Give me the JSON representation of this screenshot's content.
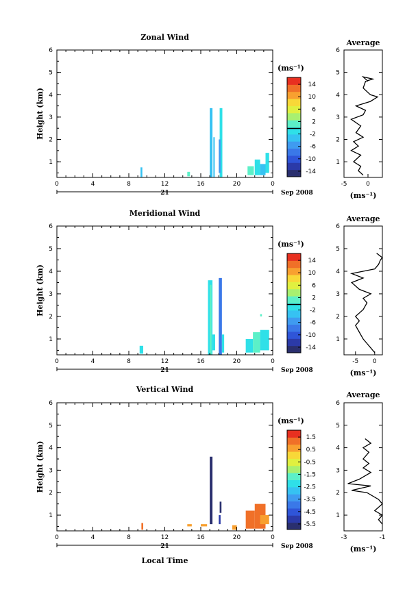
{
  "figure": {
    "xlabel": "Local Time",
    "date_label": "Sep 2008",
    "day_label": "21",
    "unit_label": "(ms⁻¹)"
  },
  "colormap": [
    "#2a2f6e",
    "#2b3aa8",
    "#2f55d8",
    "#3a78e8",
    "#3f9bf0",
    "#36c2f2",
    "#2fe0e8",
    "#5cf0c8",
    "#a8f070",
    "#e0f040",
    "#f8d838",
    "#f8a030",
    "#f07028",
    "#e83020"
  ],
  "chart_data": [
    {
      "type": "heatmap",
      "title": "Zonal Wind",
      "xlabel": "",
      "ylabel": "Height (km)",
      "xlim": [
        0,
        24
      ],
      "ylim": [
        0.3,
        6
      ],
      "xticks": [
        "0",
        "4",
        "8",
        "12",
        "16",
        "20",
        "0"
      ],
      "yticks": [
        "1",
        "2",
        "3",
        "4",
        "5",
        "6"
      ],
      "colorbar": {
        "label": "(ms⁻¹)",
        "range": [
          -16,
          16
        ],
        "ticks": [
          "14",
          "10",
          "6",
          "2",
          "-2",
          "-6",
          "-10",
          "-14"
        ],
        "zero_line": 0
      },
      "cells": [
        {
          "t": 9.3,
          "t2": 9.5,
          "h0": 0.3,
          "h1": 0.75,
          "v": -3
        },
        {
          "t": 14.5,
          "t2": 14.8,
          "h0": 0.35,
          "h1": 0.55,
          "v": 0
        },
        {
          "t": 17.0,
          "t2": 17.3,
          "h0": 0.3,
          "h1": 3.4,
          "v": -3
        },
        {
          "t": 17.4,
          "t2": 17.55,
          "h0": 0.3,
          "h1": 2.1,
          "v": -4
        },
        {
          "t": 18.1,
          "t2": 18.4,
          "h0": 0.3,
          "h1": 3.4,
          "v": -2
        },
        {
          "t": 18.0,
          "t2": 18.2,
          "h0": 0.5,
          "h1": 2.0,
          "v": -5
        },
        {
          "t": 21.2,
          "t2": 21.9,
          "h0": 0.4,
          "h1": 0.8,
          "v": 0
        },
        {
          "t": 22.0,
          "t2": 22.6,
          "h0": 0.4,
          "h1": 1.1,
          "v": -2
        },
        {
          "t": 22.6,
          "t2": 23.2,
          "h0": 0.4,
          "h1": 0.9,
          "v": -3
        },
        {
          "t": 23.2,
          "t2": 23.6,
          "h0": 0.5,
          "h1": 1.4,
          "v": -1
        }
      ],
      "profile": {
        "title": "Average",
        "xlabel": "(ms⁻¹)",
        "xlim": [
          -5,
          3
        ],
        "xticks": [
          "-5",
          "0"
        ],
        "xtick_values": [
          -5,
          0
        ],
        "yticks": [
          "1",
          "2",
          "3",
          "4",
          "5",
          "6"
        ],
        "points": [
          [
            -1,
            0.4
          ],
          [
            -2,
            0.6
          ],
          [
            -1.5,
            0.8
          ],
          [
            -3,
            1.0
          ],
          [
            -1.5,
            1.3
          ],
          [
            -3.5,
            1.5
          ],
          [
            -2,
            1.7
          ],
          [
            -3,
            1.9
          ],
          [
            -1,
            2.1
          ],
          [
            -2.5,
            2.3
          ],
          [
            -1.5,
            2.6
          ],
          [
            -3.5,
            2.9
          ],
          [
            -1,
            3.1
          ],
          [
            -0.5,
            3.3
          ],
          [
            -2.5,
            3.5
          ],
          [
            0.5,
            3.7
          ],
          [
            2,
            3.9
          ],
          [
            0.5,
            4.0
          ],
          [
            -1,
            4.3
          ],
          [
            -0.5,
            4.6
          ],
          [
            1,
            4.7
          ],
          [
            -1,
            4.8
          ],
          [
            0,
            4.6
          ]
        ]
      }
    },
    {
      "type": "heatmap",
      "title": "Meridional Wind",
      "xlabel": "",
      "ylabel": "Height (km)",
      "xlim": [
        0,
        24
      ],
      "ylim": [
        0.3,
        6
      ],
      "xticks": [
        "0",
        "4",
        "8",
        "12",
        "16",
        "20",
        "0"
      ],
      "yticks": [
        "1",
        "2",
        "3",
        "4",
        "5",
        "6"
      ],
      "colorbar": {
        "label": "(ms⁻¹)",
        "range": [
          -16,
          16
        ],
        "ticks": [
          "14",
          "10",
          "6",
          "2",
          "-2",
          "-6",
          "-10",
          "-14"
        ],
        "zero_line": 0
      },
      "cells": [
        {
          "t": 9.2,
          "t2": 9.6,
          "h0": 0.35,
          "h1": 0.7,
          "v": -2
        },
        {
          "t": 16.8,
          "t2": 17.3,
          "h0": 0.3,
          "h1": 3.6,
          "v": -1
        },
        {
          "t": 17.0,
          "t2": 17.2,
          "h0": 0.3,
          "h1": 3.4,
          "v": 1
        },
        {
          "t": 17.3,
          "t2": 17.6,
          "h0": 0.5,
          "h1": 1.2,
          "v": -1
        },
        {
          "t": 18.0,
          "t2": 18.35,
          "h0": 0.3,
          "h1": 3.7,
          "v": -9
        },
        {
          "t": 18.35,
          "t2": 18.6,
          "h0": 0.4,
          "h1": 1.2,
          "v": -2
        },
        {
          "t": 21.0,
          "t2": 21.8,
          "h0": 0.4,
          "h1": 1.0,
          "v": -1
        },
        {
          "t": 21.8,
          "t2": 22.6,
          "h0": 0.4,
          "h1": 1.3,
          "v": 0
        },
        {
          "t": 22.6,
          "t2": 23.6,
          "h0": 0.5,
          "h1": 1.4,
          "v": -1
        },
        {
          "t": 22.6,
          "t2": 22.8,
          "h0": 2.0,
          "h1": 2.1,
          "v": 1
        }
      ],
      "profile": {
        "title": "Average",
        "xlabel": "(ms⁻¹)",
        "xlim": [
          -8,
          2
        ],
        "xticks": [
          "-5",
          "0"
        ],
        "xtick_values": [
          -5,
          0
        ],
        "yticks": [
          "1",
          "2",
          "3",
          "4",
          "5",
          "6"
        ],
        "points": [
          [
            0,
            0.4
          ],
          [
            -1,
            0.6
          ],
          [
            -2,
            0.8
          ],
          [
            -3,
            1.0
          ],
          [
            -4,
            1.3
          ],
          [
            -5,
            1.6
          ],
          [
            -4,
            1.8
          ],
          [
            -5,
            2.0
          ],
          [
            -3,
            2.3
          ],
          [
            -2,
            2.6
          ],
          [
            -3,
            2.8
          ],
          [
            -1,
            3.0
          ],
          [
            -4,
            3.2
          ],
          [
            -6,
            3.5
          ],
          [
            -3,
            3.7
          ],
          [
            -6,
            3.9
          ],
          [
            -3,
            4.0
          ],
          [
            0,
            4.1
          ],
          [
            1,
            4.3
          ],
          [
            1.5,
            4.5
          ],
          [
            2,
            4.6
          ],
          [
            0.5,
            4.8
          ]
        ]
      }
    },
    {
      "type": "heatmap",
      "title": "Vertical Wind",
      "xlabel": "Local Time",
      "ylabel": "Height (km)",
      "xlim": [
        0,
        24
      ],
      "ylim": [
        0.3,
        6
      ],
      "xticks": [
        "0",
        "4",
        "8",
        "12",
        "16",
        "20",
        "0"
      ],
      "yticks": [
        "1",
        "2",
        "3",
        "4",
        "5",
        "6"
      ],
      "colorbar": {
        "label": "(ms⁻¹)",
        "range": [
          -6,
          2
        ],
        "ticks": [
          "1.5",
          "0.5",
          "-0.5",
          "-1.5",
          "-2.5",
          "-3.5",
          "-4.5",
          "-5.5"
        ],
        "zero_line": null
      },
      "cells": [
        {
          "t": 9.4,
          "t2": 9.6,
          "h0": 0.35,
          "h1": 0.65,
          "v": 1.0
        },
        {
          "t": 14.5,
          "t2": 15.0,
          "h0": 0.5,
          "h1": 0.6,
          "v": 0.8
        },
        {
          "t": 16.0,
          "t2": 16.7,
          "h0": 0.5,
          "h1": 0.6,
          "v": 0.5
        },
        {
          "t": 17.0,
          "t2": 17.3,
          "h0": 0.6,
          "h1": 3.6,
          "v": -5.5
        },
        {
          "t": 18.0,
          "t2": 18.2,
          "h0": 0.6,
          "h1": 1.0,
          "v": -5.0
        },
        {
          "t": 18.1,
          "t2": 18.3,
          "h0": 1.1,
          "h1": 1.6,
          "v": -5.5
        },
        {
          "t": 19.5,
          "t2": 20.0,
          "h0": 0.35,
          "h1": 0.55,
          "v": 0.8
        },
        {
          "t": 21.0,
          "t2": 22.0,
          "h0": 0.4,
          "h1": 1.2,
          "v": 0.9
        },
        {
          "t": 22.0,
          "t2": 23.2,
          "h0": 0.4,
          "h1": 1.5,
          "v": 1.2
        },
        {
          "t": 22.6,
          "t2": 23.6,
          "h0": 0.6,
          "h1": 1.0,
          "v": 0.4
        }
      ],
      "profile": {
        "title": "Average",
        "xlabel": "(ms⁻¹)",
        "xlim": [
          -3,
          -1
        ],
        "xticks": [
          "-3",
          "-1"
        ],
        "xtick_values": [
          -3,
          -1
        ],
        "yticks": [
          "1",
          "2",
          "3",
          "4",
          "5",
          "6"
        ],
        "points": [
          [
            -1,
            0.6
          ],
          [
            -1.2,
            0.8
          ],
          [
            -1.0,
            1.0
          ],
          [
            -1.4,
            1.2
          ],
          [
            -1.0,
            1.5
          ],
          [
            -1.2,
            1.7
          ],
          [
            -1.8,
            2.0
          ],
          [
            -2.6,
            2.1
          ],
          [
            -1.6,
            2.3
          ],
          [
            -2.8,
            2.4
          ],
          [
            -2.2,
            2.6
          ],
          [
            -1.6,
            2.9
          ],
          [
            -2.0,
            3.1
          ],
          [
            -1.7,
            3.3
          ],
          [
            -2.0,
            3.5
          ],
          [
            -1.7,
            3.8
          ],
          [
            -2.0,
            4.0
          ],
          [
            -1.6,
            4.2
          ],
          [
            -1.9,
            4.4
          ]
        ]
      }
    }
  ]
}
